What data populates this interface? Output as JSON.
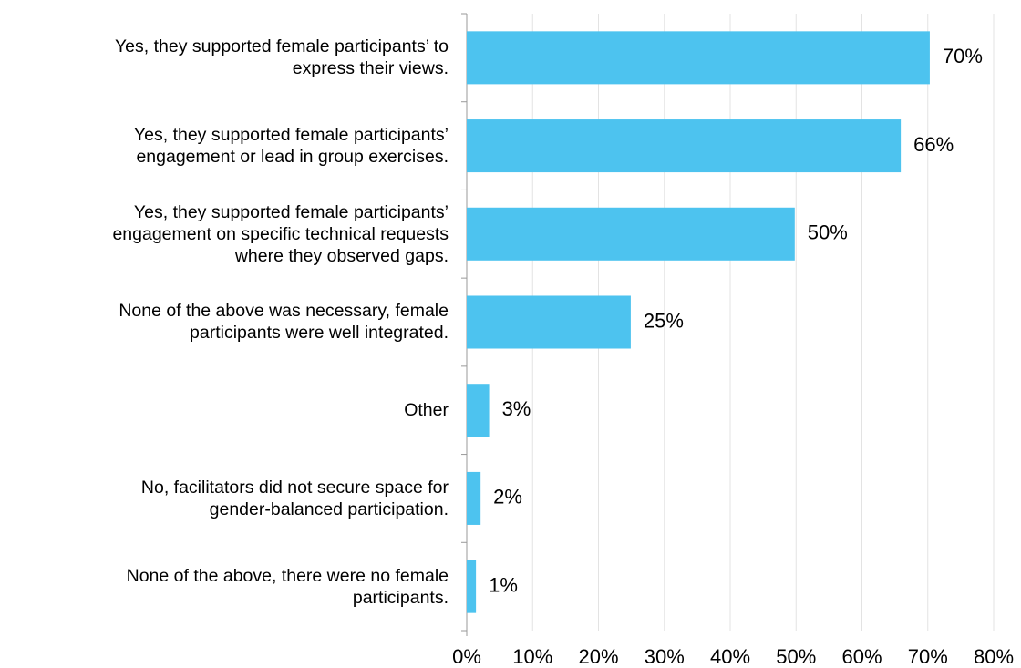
{
  "chart_data": {
    "type": "bar",
    "orientation": "horizontal",
    "categories": [
      "Yes, they supported female participants’ to\nexpress their views.",
      "Yes, they supported female participants’\nengagement or lead in group exercises.",
      "Yes, they supported female participants’\nengagement on specific technical requests\nwhere they observed gaps.",
      "None of the above was necessary, female\nparticipants were well integrated.",
      "Other",
      "No, facilitators did not secure space for\ngender-balanced participation.",
      "None of the above, there were no female\nparticipants."
    ],
    "values": [
      70.3,
      65.9,
      49.8,
      24.9,
      3.4,
      2.1,
      1.4
    ],
    "value_labels": [
      "70%",
      "66%",
      "50%",
      "25%",
      "3%",
      "2%",
      "1%"
    ],
    "color": "#4dc3ef",
    "xlim": [
      0,
      80
    ],
    "xticks": [
      {
        "value": 0,
        "label": "0%"
      },
      {
        "value": 10,
        "label": "10%"
      },
      {
        "value": 20,
        "label": "20%"
      },
      {
        "value": 30,
        "label": "30%"
      },
      {
        "value": 40,
        "label": "40%"
      },
      {
        "value": 50,
        "label": "50%"
      },
      {
        "value": 60,
        "label": "60%"
      },
      {
        "value": 70,
        "label": "70%"
      },
      {
        "value": 80,
        "label": "80%"
      }
    ],
    "grid": true
  }
}
